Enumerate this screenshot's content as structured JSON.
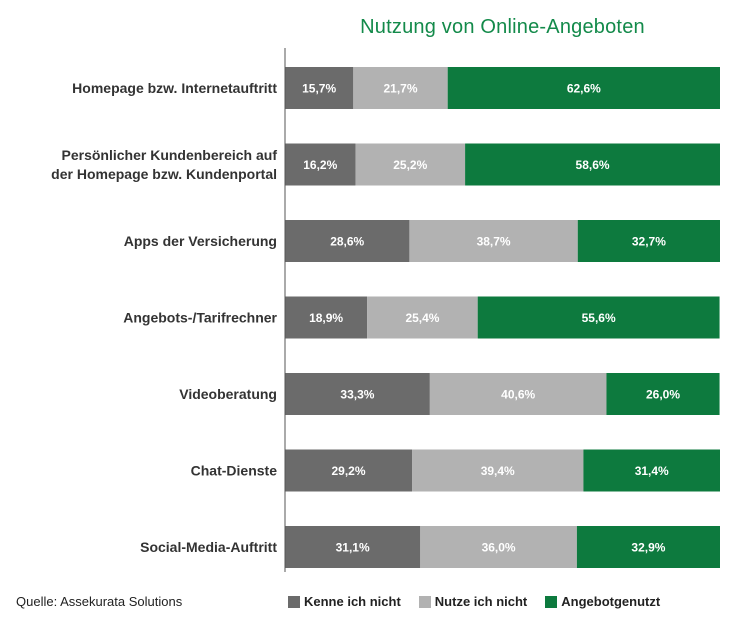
{
  "chart_data": {
    "type": "bar",
    "orientation": "horizontal",
    "stacked": true,
    "title": "Nutzung  von Online-Angeboten",
    "categories": [
      "Homepage bzw. Internetauftritt",
      "Persönlicher Kundenbereich auf|der Homepage bzw. Kundenportal",
      "Apps der Versicherung",
      "Angebots-/Tarifrechner",
      "Videoberatung",
      "Chat-Dienste",
      "Social-Media-Auftritt"
    ],
    "series": [
      {
        "name": "Kenne ich nicht",
        "color": "#6b6b6b",
        "values": [
          15.7,
          16.2,
          28.6,
          18.9,
          33.3,
          29.2,
          31.1
        ],
        "labels": [
          "15,7%",
          "16,2%",
          "28,6%",
          "18,9%",
          "33,3%",
          "29,2%",
          "31,1%"
        ]
      },
      {
        "name": "Nutze ich nicht",
        "color": "#b2b2b2",
        "values": [
          21.7,
          25.2,
          38.7,
          25.4,
          40.6,
          39.4,
          36.0
        ],
        "labels": [
          "21,7%",
          "25,2%",
          "38,7%",
          "25,4%",
          "40,6%",
          "39,4%",
          "36,0%"
        ]
      },
      {
        "name": "Angebotgenutzt",
        "color": "#0d7a3e",
        "values": [
          62.6,
          58.6,
          32.7,
          55.6,
          26.0,
          31.4,
          32.9
        ],
        "labels": [
          "62,6%",
          "58,6%",
          "32,7%",
          "55,6%",
          "26,0%",
          "31,4%",
          "32,9%"
        ]
      }
    ],
    "xlim": [
      0,
      100
    ],
    "grid": false,
    "legend_position": "bottom"
  },
  "source": "Quelle:  Assekurata Solutions",
  "colors": {
    "title": "#138a4a",
    "axis": "#555555"
  }
}
